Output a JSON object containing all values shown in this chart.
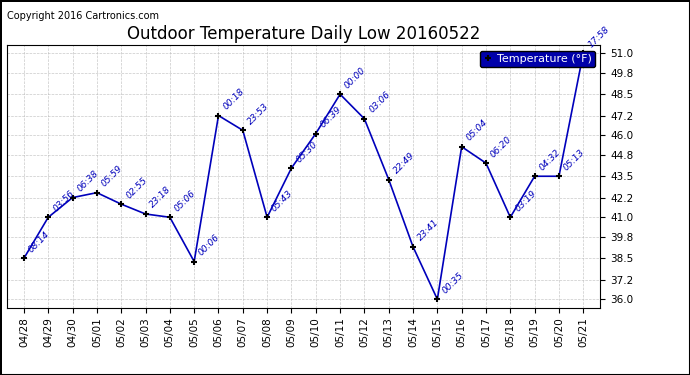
{
  "title": "Outdoor Temperature Daily Low 20160522",
  "copyright_text": "Copyright 2016 Cartronics.com",
  "legend_label": "Temperature (°F)",
  "x_labels": [
    "04/28",
    "04/29",
    "04/30",
    "05/01",
    "05/02",
    "05/03",
    "05/04",
    "05/05",
    "05/06",
    "05/07",
    "05/08",
    "05/09",
    "05/10",
    "05/11",
    "05/12",
    "05/13",
    "05/14",
    "05/15",
    "05/16",
    "05/17",
    "05/18",
    "05/19",
    "05/20",
    "05/21"
  ],
  "y_values": [
    38.5,
    41.0,
    42.2,
    42.5,
    41.8,
    41.2,
    41.0,
    38.3,
    47.2,
    46.3,
    41.0,
    44.0,
    46.1,
    48.5,
    47.0,
    43.3,
    39.2,
    36.0,
    45.3,
    44.3,
    41.0,
    43.5,
    43.5,
    51.0
  ],
  "time_labels": [
    "08:14",
    "03:56",
    "06:38",
    "05:59",
    "02:55",
    "23:18",
    "05:06",
    "00:06",
    "00:18",
    "23:53",
    "05:43",
    "05:30",
    "06:39",
    "00:00",
    "03:06",
    "22:49",
    "23:41",
    "00:35",
    "05:04",
    "06:20",
    "03:19",
    "04:32",
    "05:13",
    "17:58"
  ],
  "ylim": [
    35.5,
    51.5
  ],
  "yticks": [
    36.0,
    37.2,
    38.5,
    39.8,
    41.0,
    42.2,
    43.5,
    44.8,
    46.0,
    47.2,
    48.5,
    49.8,
    51.0
  ],
  "ytick_labels": [
    "36.0",
    "37.2",
    "38.5",
    "39.8",
    "41.0",
    "42.2",
    "43.5",
    "44.8",
    "46.0",
    "47.2",
    "48.5",
    "49.8",
    "51.0"
  ],
  "line_color": "#0000bb",
  "marker_color": "#000000",
  "label_color": "#0000bb",
  "bg_color": "#ffffff",
  "grid_color": "#bbbbbb",
  "title_fontsize": 12,
  "tick_fontsize": 7.5,
  "annotation_fontsize": 6.5,
  "copyright_fontsize": 7,
  "legend_fontsize": 8,
  "legend_bg": "#0000aa",
  "legend_fg": "#ffffff"
}
